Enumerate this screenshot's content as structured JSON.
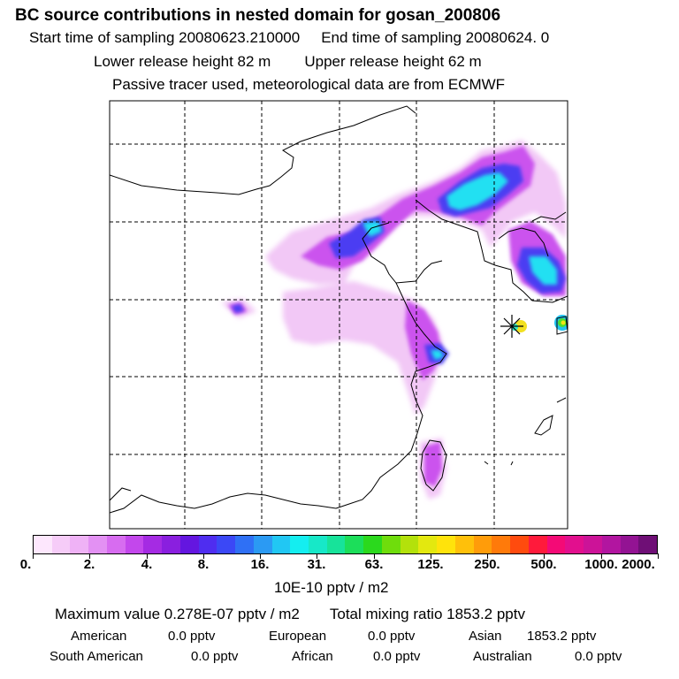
{
  "header": {
    "title": "BC  source contributions in nested domain for gosan_200806",
    "start_label": "Start time of sampling 20080623.210000",
    "end_label": "End time of sampling 20080624.     0",
    "lower_release": "Lower release height   82 m",
    "upper_release": "Upper release height   62 m",
    "note": "Passive tracer used, meteorological data are from ECMWF"
  },
  "legend": {
    "labels": [
      "0.",
      "2.",
      "4.",
      "8.",
      "16.",
      "31.",
      "63.",
      "125.",
      "250.",
      "500.",
      "1000.",
      "2000."
    ],
    "units": "10E-10 pptv / m2",
    "colors": [
      "#fde7fd",
      "#f6ccf8",
      "#efb2f6",
      "#e391f3",
      "#d76cf0",
      "#c347ec",
      "#a52be3",
      "#8a1fdf",
      "#6416e0",
      "#4f2df0",
      "#3b48f6",
      "#2f70f5",
      "#2b9af3",
      "#21c7f3",
      "#14eef0",
      "#17e8c8",
      "#17e39a",
      "#1cde5a",
      "#2bd91d",
      "#6fdd0c",
      "#b3e10b",
      "#e3e80f",
      "#ffe30b",
      "#ffc00a",
      "#ff9c0a",
      "#ff7a0a",
      "#ff4b0e",
      "#ff1a3b",
      "#f40a76",
      "#e20f8e",
      "#cc1398",
      "#b215a0",
      "#931393",
      "#6f0f76"
    ]
  },
  "summary": {
    "max_value": "Maximum value  0.278E-07 pptv / m2",
    "total": "Total mixing ratio     1853.2 pptv",
    "regions": [
      {
        "name": "American",
        "value": "0.0 pptv"
      },
      {
        "name": "European",
        "value": "0.0 pptv"
      },
      {
        "name": "Asian",
        "value": "1853.2 pptv"
      },
      {
        "name": "South American",
        "value": "0.0 pptv"
      },
      {
        "name": "African",
        "value": "0.0 pptv"
      },
      {
        "name": "Australian",
        "value": "0.0 pptv"
      }
    ]
  }
}
